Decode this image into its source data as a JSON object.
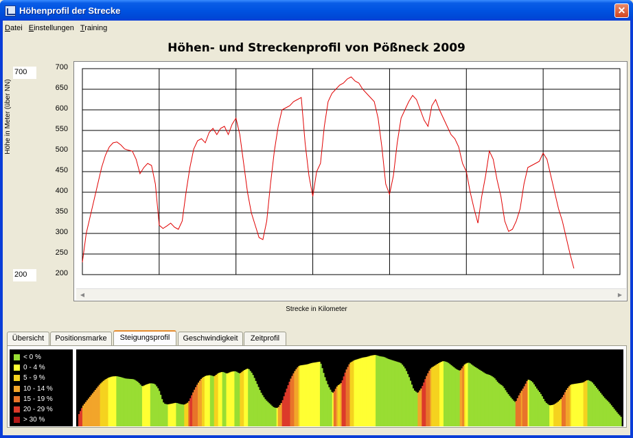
{
  "window": {
    "title": "Höhenprofil der Strecke",
    "close_icon": "close-icon"
  },
  "menu": [
    {
      "label": "Datei",
      "underline": "D",
      "rest": "atei"
    },
    {
      "label": "Einstellungen",
      "underline": "E",
      "rest": "instellungen"
    },
    {
      "label": "Training",
      "underline": "T",
      "rest": "raining"
    }
  ],
  "range_inputs": {
    "max": "700",
    "min": "200"
  },
  "chart_data": {
    "type": "line",
    "title": "Höhen- und Streckenprofil von Pößneck 2009",
    "xlabel": "Strecke in Kilometer",
    "ylabel": "Höhe in Meter (über NN)",
    "xlim": [
      0,
      140
    ],
    "ylim": [
      200,
      700
    ],
    "xticks": [
      "0",
      "20",
      "40",
      "60",
      "80",
      "100",
      "120",
      "140"
    ],
    "yticks": [
      "700",
      "650",
      "600",
      "550",
      "500",
      "450",
      "400",
      "350",
      "300",
      "250",
      "200"
    ],
    "grid": true,
    "series_color": "#e00000",
    "x": [
      0,
      1,
      2,
      3,
      4,
      5,
      6,
      7,
      8,
      9,
      10,
      11,
      12,
      13,
      14,
      15,
      16,
      17,
      18,
      19,
      20,
      21,
      22,
      23,
      24,
      25,
      26,
      27,
      28,
      29,
      30,
      31,
      32,
      33,
      34,
      35,
      36,
      37,
      38,
      39,
      40,
      41,
      42,
      43,
      44,
      45,
      46,
      47,
      48,
      49,
      50,
      51,
      52,
      53,
      54,
      55,
      56,
      57,
      58,
      59,
      60,
      61,
      62,
      63,
      64,
      65,
      66,
      67,
      68,
      69,
      70,
      71,
      72,
      73,
      74,
      75,
      76,
      77,
      78,
      79,
      80,
      81,
      82,
      83,
      84,
      85,
      86,
      87,
      88,
      89,
      90,
      91,
      92,
      93,
      94,
      95,
      96,
      97,
      98,
      99,
      100,
      101,
      102,
      103,
      104,
      105,
      106,
      107,
      108,
      109,
      110,
      111,
      112,
      113,
      114,
      115,
      116,
      117,
      118,
      119,
      120,
      121,
      122,
      123,
      124,
      125,
      126,
      127,
      128
    ],
    "y": [
      230,
      300,
      340,
      380,
      420,
      460,
      490,
      510,
      520,
      522,
      515,
      505,
      502,
      500,
      480,
      445,
      460,
      470,
      465,
      420,
      320,
      312,
      318,
      325,
      315,
      310,
      330,
      400,
      460,
      505,
      525,
      530,
      520,
      545,
      555,
      540,
      555,
      560,
      540,
      565,
      580,
      540,
      470,
      400,
      350,
      320,
      290,
      285,
      330,
      420,
      500,
      560,
      600,
      605,
      610,
      620,
      625,
      630,
      520,
      440,
      390,
      450,
      470,
      560,
      620,
      640,
      650,
      660,
      665,
      675,
      680,
      670,
      665,
      650,
      640,
      630,
      620,
      580,
      510,
      420,
      395,
      440,
      520,
      580,
      600,
      620,
      635,
      625,
      600,
      575,
      560,
      610,
      625,
      600,
      580,
      560,
      540,
      530,
      510,
      470,
      450,
      400,
      360,
      325,
      390,
      440,
      500,
      480,
      430,
      390,
      330,
      305,
      310,
      330,
      360,
      420,
      460,
      465,
      470,
      475,
      495,
      480,
      440,
      400,
      360,
      330,
      290,
      250,
      215
    ]
  },
  "tabs": [
    {
      "label": "Übersicht",
      "active": false
    },
    {
      "label": "Positionsmarke",
      "active": false
    },
    {
      "label": "Steigungsprofil",
      "active": true
    },
    {
      "label": "Geschwindigkeit",
      "active": false
    },
    {
      "label": "Zeitprofil",
      "active": false
    }
  ],
  "gradient_legend": [
    {
      "label": "< 0 %",
      "color": "#99dd33"
    },
    {
      "label": "0 - 4 %",
      "color": "#ffff33"
    },
    {
      "label": "5 - 9 %",
      "color": "#f5d21f"
    },
    {
      "label": "10 - 14 %",
      "color": "#f2a52a"
    },
    {
      "label": "15 - 19 %",
      "color": "#e8742a"
    },
    {
      "label": "20 - 29 %",
      "color": "#dc3a2a"
    },
    {
      "label": "> 30 %",
      "color": "#b01818"
    }
  ]
}
